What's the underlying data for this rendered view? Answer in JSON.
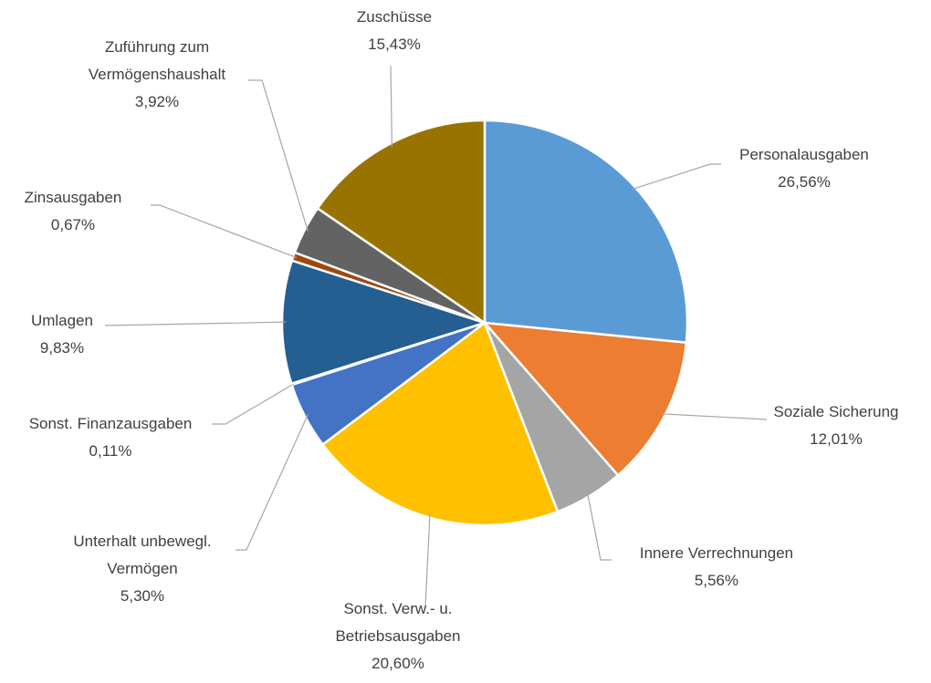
{
  "chart_data": {
    "type": "pie",
    "categories": [
      "Personalausgaben",
      "Soziale Sicherung",
      "Innere Verrechnungen",
      "Sonst. Verw.- u. Betriebsausgaben",
      "Unterhalt unbewegl. Vermögen",
      "Sonst. Finanzausgaben",
      "Umlagen",
      "Zinsausgaben",
      "Zuführung zum Vermögenshaushalt",
      "Zuschüsse"
    ],
    "values": [
      26.56,
      12.01,
      5.56,
      20.6,
      5.3,
      0.11,
      9.83,
      0.67,
      3.92,
      15.43
    ],
    "value_labels": [
      "26,56%",
      "12,01%",
      "5,56%",
      "20,60%",
      "5,30%",
      "0,11%",
      "9,83%",
      "0,67%",
      "3,92%",
      "15,43%"
    ],
    "colors": [
      "#5b9bd5",
      "#ed7d31",
      "#a5a5a5",
      "#ffc000",
      "#4472c4",
      "#70ad47",
      "#255e91",
      "#9e480e",
      "#636363",
      "#997300"
    ]
  }
}
